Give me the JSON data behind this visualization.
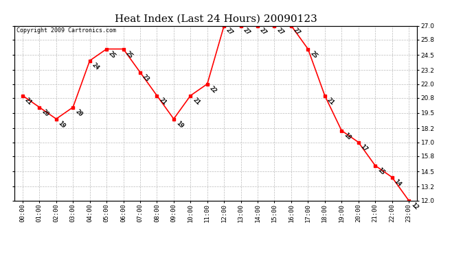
{
  "title": "Heat Index (Last 24 Hours) 20090123",
  "copyright": "Copyright 2009 Cartronics.com",
  "hours": [
    "00:00",
    "01:00",
    "02:00",
    "03:00",
    "04:00",
    "05:00",
    "06:00",
    "07:00",
    "08:00",
    "09:00",
    "10:00",
    "11:00",
    "12:00",
    "13:00",
    "14:00",
    "15:00",
    "16:00",
    "17:00",
    "18:00",
    "19:00",
    "20:00",
    "21:00",
    "22:00",
    "23:00"
  ],
  "values": [
    21,
    20,
    19,
    20,
    24,
    25,
    25,
    23,
    21,
    19,
    21,
    22,
    27,
    27,
    27,
    27,
    27,
    25,
    21,
    18,
    17,
    15,
    14,
    12
  ],
  "line_color": "#ff0000",
  "marker_color": "#ff0000",
  "bg_color": "#ffffff",
  "grid_color": "#bbbbbb",
  "ylim_min": 12.0,
  "ylim_max": 27.0,
  "yticks": [
    12.0,
    13.2,
    14.5,
    15.8,
    17.0,
    18.2,
    19.5,
    20.8,
    22.0,
    23.2,
    24.5,
    25.8,
    27.0
  ],
  "title_fontsize": 11,
  "label_fontsize": 6.5,
  "tick_fontsize": 6.5,
  "copyright_fontsize": 6
}
